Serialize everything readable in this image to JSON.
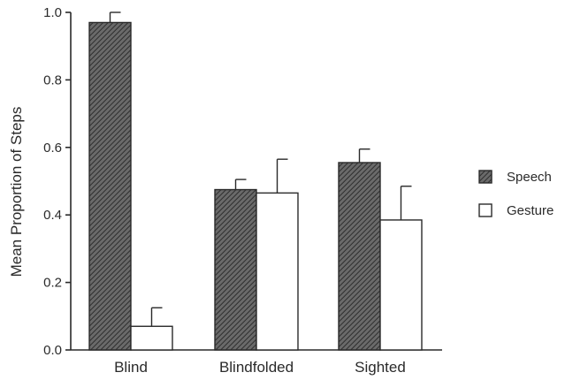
{
  "chart_data": {
    "type": "bar",
    "title": "",
    "xlabel": "",
    "ylabel": "Mean Proportion of Steps",
    "ylim": [
      0,
      1.0
    ],
    "yticks": [
      "0.0",
      "0.2",
      "0.4",
      "0.6",
      "0.8",
      "1.0"
    ],
    "categories": [
      "Blind",
      "Blindfolded",
      "Sighted"
    ],
    "series": [
      {
        "name": "Speech",
        "values": [
          0.97,
          0.475,
          0.555
        ],
        "error": [
          0.03,
          0.03,
          0.04
        ],
        "fill": "hatched",
        "color": "#555555"
      },
      {
        "name": "Gesture",
        "values": [
          0.07,
          0.465,
          0.385
        ],
        "error": [
          0.055,
          0.1,
          0.1
        ],
        "fill": "open",
        "color": "#ffffff"
      }
    ],
    "legend": {
      "placement": "right"
    },
    "grid": false
  }
}
